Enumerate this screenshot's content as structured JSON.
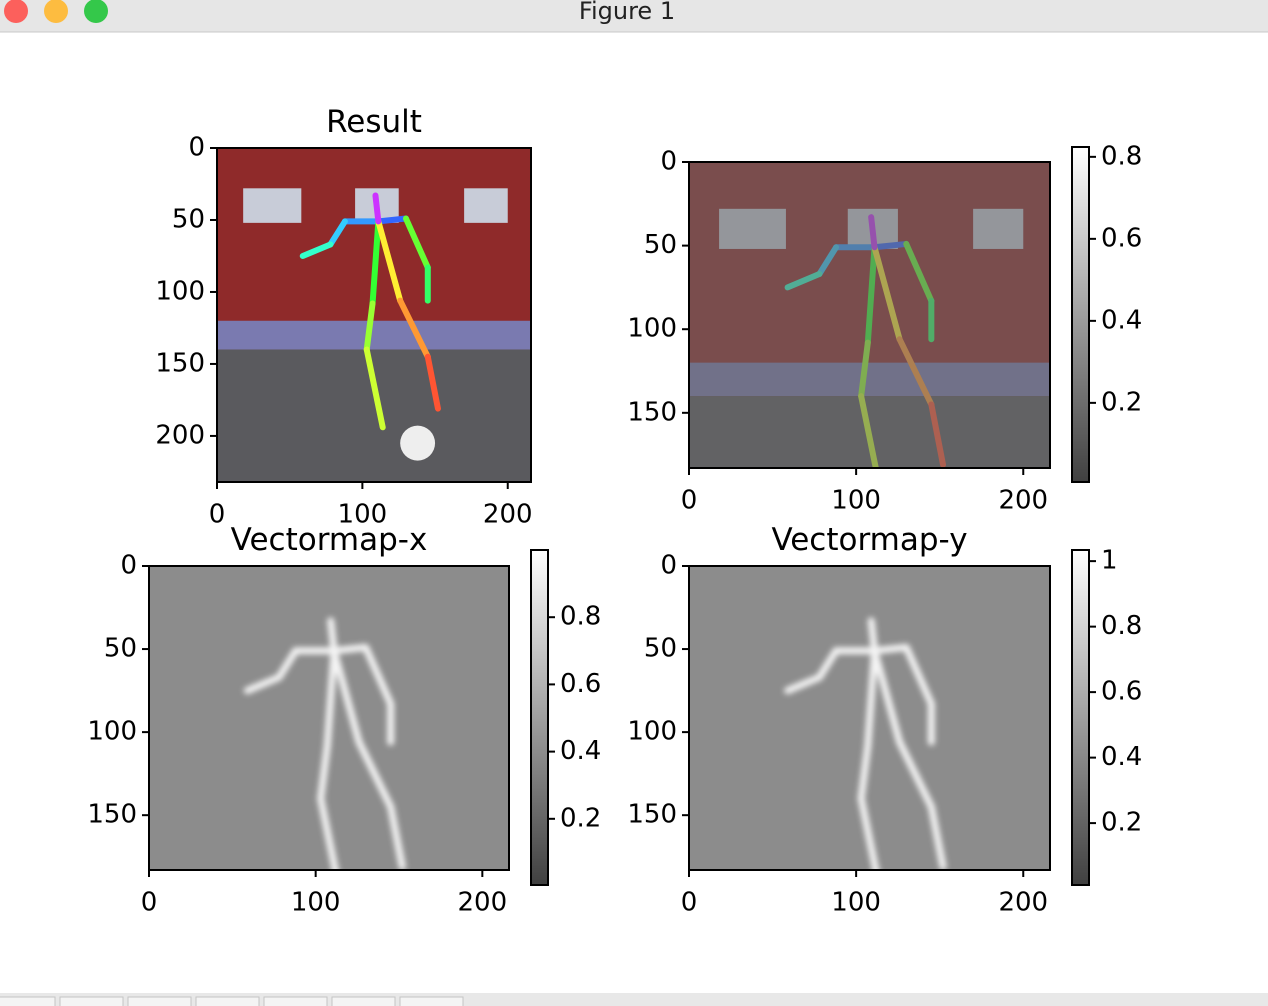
{
  "window": {
    "title": "Figure 1"
  },
  "panels": [
    {
      "title": "Result",
      "image": "photo",
      "xlim": [
        0,
        216
      ],
      "ylim": [
        232,
        0
      ],
      "xticks": [
        0,
        100,
        200
      ],
      "yticks": [
        0,
        50,
        100,
        150,
        200
      ]
    },
    {
      "image": "overlay",
      "xlim": [
        0,
        216
      ],
      "ylim": [
        183,
        0
      ],
      "xticks": [
        0,
        100,
        200
      ],
      "yticks": [
        0,
        50,
        100,
        150
      ],
      "colorbar": {
        "lim": [
          0.007,
          0.824
        ],
        "ticks": [
          0.2,
          0.4,
          0.6,
          0.8
        ]
      }
    },
    {
      "title": "Vectormap-x",
      "image": "map",
      "xlim": [
        0,
        216
      ],
      "ylim": [
        183,
        0
      ],
      "xticks": [
        0,
        100,
        200
      ],
      "yticks": [
        0,
        50,
        100,
        150
      ],
      "colorbar": {
        "lim": [
          0.003,
          1.0
        ],
        "ticks": [
          0.2,
          0.4,
          0.6,
          0.8
        ]
      }
    },
    {
      "title": "Vectormap-y",
      "image": "map",
      "xlim": [
        0,
        216
      ],
      "ylim": [
        183,
        0
      ],
      "xticks": [
        0,
        100,
        200
      ],
      "yticks": [
        0,
        50,
        100,
        150
      ],
      "colorbar": {
        "lim": [
          0.011,
          1.034
        ],
        "ticks": [
          0.2,
          0.4,
          0.6,
          0.8,
          1.0
        ]
      }
    }
  ]
}
